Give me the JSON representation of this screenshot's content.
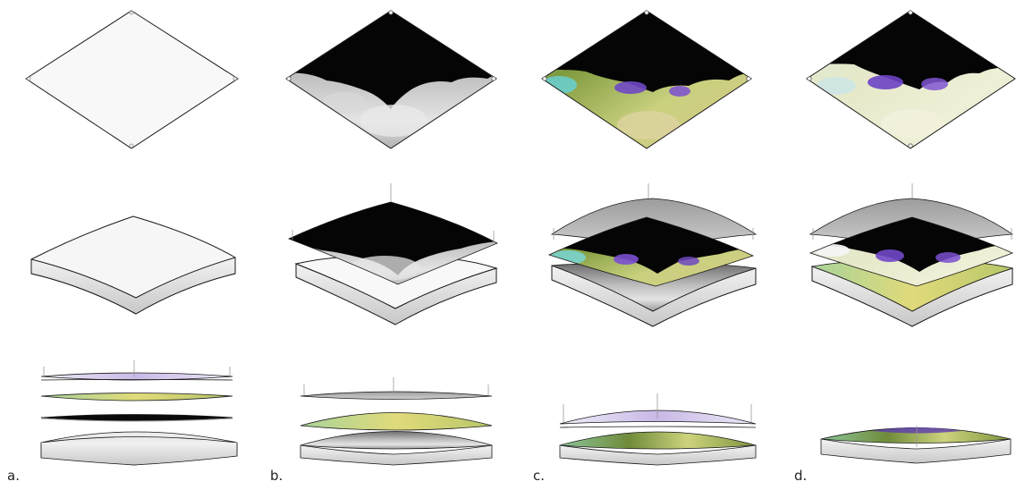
{
  "figure": {
    "panels": [
      {
        "id": "a",
        "label": "a."
      },
      {
        "id": "b",
        "label": "b."
      },
      {
        "id": "c",
        "label": "c."
      },
      {
        "id": "d",
        "label": "d."
      }
    ]
  },
  "colors": {
    "outline": "#1a1a1a",
    "base_fill": "#f6f6f6",
    "base_side": "#d6d6d6",
    "dark": "#050505",
    "terrain_light": "#e6e6e6",
    "terrain_mid": "#8a8a8a",
    "yellow_green": "#c4cf70",
    "olive": "#7d8a3a",
    "cyan": "#8fdcdc",
    "purple": "#7d4cc0",
    "lavender": "#c7b9e3",
    "pale": "#e9ecd6",
    "grey_plate": "#b4b4b4"
  }
}
